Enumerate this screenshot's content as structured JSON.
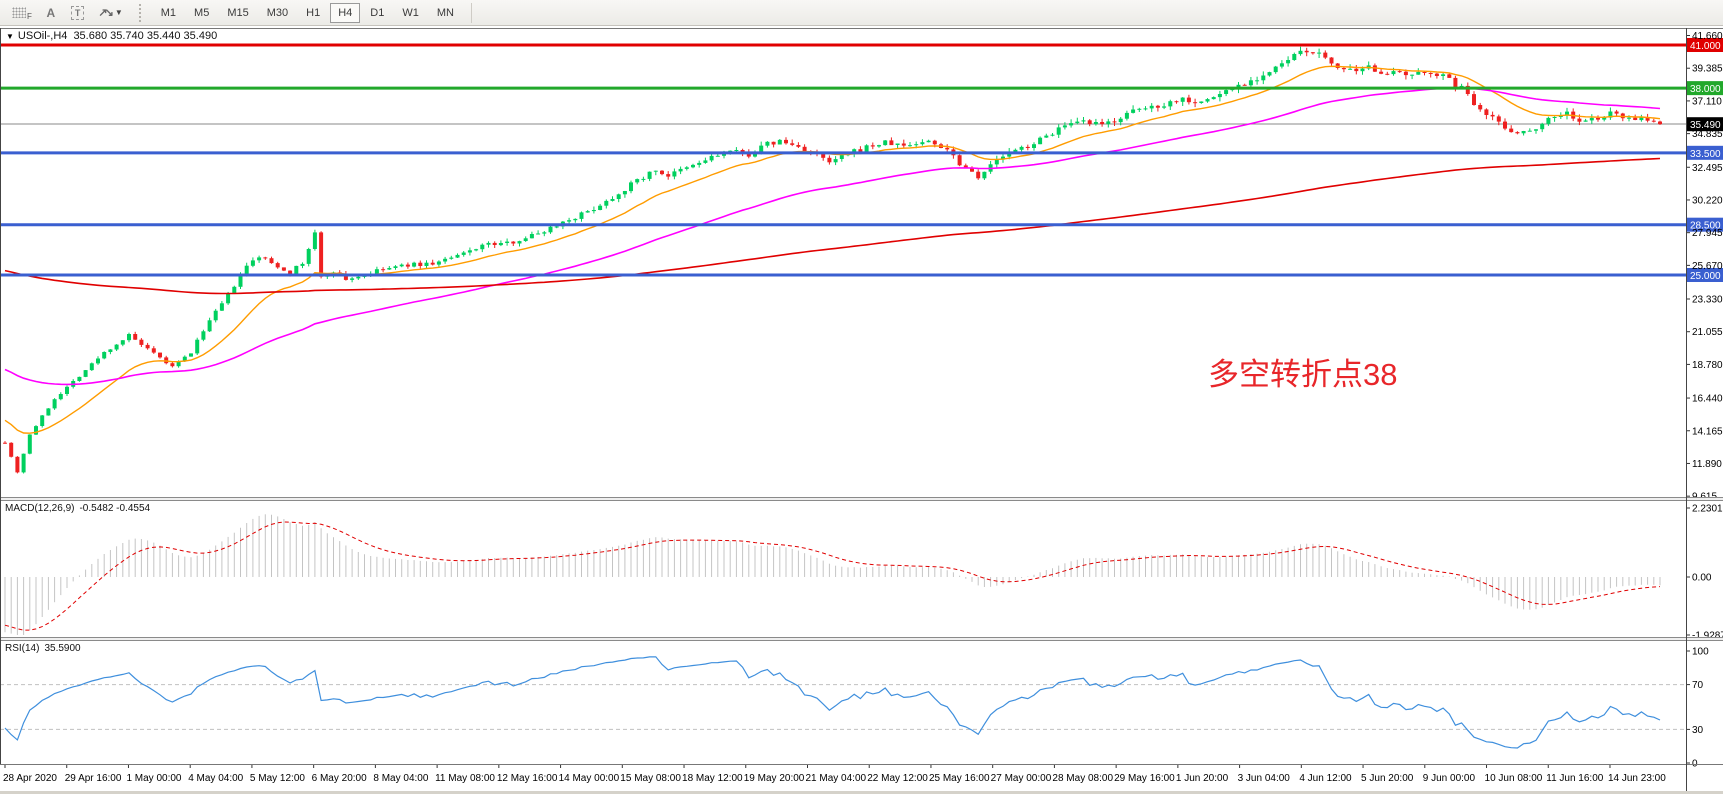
{
  "toolbar": {
    "icons": [
      {
        "name": "grid-template-icon",
        "label": "F"
      },
      {
        "name": "text-label-icon",
        "label": "A"
      },
      {
        "name": "text-box-icon",
        "label": "T"
      },
      {
        "name": "arrows-objects-icon",
        "label": ""
      }
    ],
    "timeframes": [
      "M1",
      "M5",
      "M15",
      "M30",
      "H1",
      "H4",
      "D1",
      "W1",
      "MN"
    ],
    "active_timeframe": "H4"
  },
  "chart": {
    "title": "USOil-,H4",
    "ohlc": "35.680 35.740 35.440 35.490",
    "annotation": "多空转折点38",
    "annotation_color": "#e8262a"
  },
  "chart_data": [
    {
      "type": "candlestick",
      "symbol": "USOil-",
      "timeframe": "H4",
      "ohlc_display": {
        "open": "35.680",
        "high": "35.740",
        "low": "35.440",
        "close": "35.490"
      },
      "colors": {
        "bull": "#00d05e",
        "bear": "#ee2020"
      },
      "y_axis_ticks": [
        41.66,
        39.385,
        37.11,
        34.835,
        32.495,
        30.22,
        27.945,
        25.67,
        23.33,
        21.055,
        18.78,
        16.44,
        14.165,
        11.89,
        9.615
      ],
      "x_axis_labels": [
        "28 Apr 2020",
        "29 Apr 16:00",
        "1 May 00:00",
        "4 May 04:00",
        "5 May 12:00",
        "6 May 20:00",
        "8 May 04:00",
        "11 May 08:00",
        "12 May 16:00",
        "14 May 00:00",
        "15 May 08:00",
        "18 May 12:00",
        "19 May 20:00",
        "21 May 04:00",
        "22 May 12:00",
        "25 May 16:00",
        "27 May 00:00",
        "28 May 08:00",
        "29 May 16:00",
        "1 Jun 20:00",
        "3 Jun 04:00",
        "4 Jun 12:00",
        "5 Jun 20:00",
        "9 Jun 00:00",
        "10 Jun 08:00",
        "11 Jun 16:00",
        "14 Jun 23:00"
      ],
      "hlines": [
        {
          "price": 41.0,
          "label": "41.000",
          "color": "#e00000"
        },
        {
          "price": 38.0,
          "label": "38.000",
          "color": "#22a82b"
        },
        {
          "price": 33.5,
          "label": "33.500",
          "color": "#3a5fd0"
        },
        {
          "price": 28.5,
          "label": "28.500",
          "color": "#3a5fd0"
        },
        {
          "price": 25.0,
          "label": "25.000",
          "color": "#3a5fd0"
        }
      ],
      "current_price": {
        "value": 35.49,
        "label": "35.490",
        "line_color": "#8a8a8a",
        "badge_bg": "#000000"
      },
      "moving_averages": [
        {
          "name": "fast-ma",
          "color": "#ff9c00",
          "period": 16,
          "seed": 15.1,
          "width": 1.4
        },
        {
          "name": "medium-ma",
          "color": "#ff00ff",
          "period": 60,
          "seed": 18.6,
          "width": 1.6
        },
        {
          "name": "slow-ma",
          "color": "#e00000",
          "period": 260,
          "seed": 25.4,
          "width": 1.6
        }
      ],
      "price_path": [
        [
          0,
          13.4
        ],
        [
          2,
          11.3
        ],
        [
          4,
          13.9
        ],
        [
          8,
          16.4
        ],
        [
          12,
          18.0
        ],
        [
          16,
          19.6
        ],
        [
          20,
          20.8
        ],
        [
          23,
          19.8
        ],
        [
          27,
          18.6
        ],
        [
          30,
          19.6
        ],
        [
          32,
          21.2
        ],
        [
          36,
          23.6
        ],
        [
          39,
          25.6
        ],
        [
          41,
          26.3
        ],
        [
          44,
          25.6
        ],
        [
          46,
          25.2
        ],
        [
          48,
          25.8
        ],
        [
          50,
          27.9
        ],
        [
          51,
          24.8
        ],
        [
          53,
          25.3
        ],
        [
          55,
          24.7
        ],
        [
          58,
          25.0
        ],
        [
          61,
          25.4
        ],
        [
          65,
          25.7
        ],
        [
          69,
          25.8
        ],
        [
          73,
          26.3
        ],
        [
          77,
          27.1
        ],
        [
          81,
          27.2
        ],
        [
          86,
          27.9
        ],
        [
          90,
          28.7
        ],
        [
          94,
          29.4
        ],
        [
          98,
          30.4
        ],
        [
          102,
          31.6
        ],
        [
          105,
          32.3
        ],
        [
          107,
          31.9
        ],
        [
          111,
          32.6
        ],
        [
          114,
          33.2
        ],
        [
          117,
          33.6
        ],
        [
          120,
          33.4
        ],
        [
          123,
          34.1
        ],
        [
          125,
          34.3
        ],
        [
          128,
          33.9
        ],
        [
          131,
          33.3
        ],
        [
          133,
          32.8
        ],
        [
          136,
          33.4
        ],
        [
          139,
          33.9
        ],
        [
          142,
          34.2
        ],
        [
          145,
          34.0
        ],
        [
          149,
          34.3
        ],
        [
          152,
          33.8
        ],
        [
          154,
          32.8
        ],
        [
          157,
          31.9
        ],
        [
          159,
          32.6
        ],
        [
          161,
          33.3
        ],
        [
          164,
          33.8
        ],
        [
          167,
          34.4
        ],
        [
          170,
          35.2
        ],
        [
          174,
          35.6
        ],
        [
          177,
          35.4
        ],
        [
          180,
          36.0
        ],
        [
          183,
          36.5
        ],
        [
          187,
          36.9
        ],
        [
          190,
          37.3
        ],
        [
          193,
          37.0
        ],
        [
          196,
          37.6
        ],
        [
          199,
          38.2
        ],
        [
          203,
          38.9
        ],
        [
          206,
          39.6
        ],
        [
          208,
          40.3
        ],
        [
          211,
          40.6
        ],
        [
          213,
          40.0
        ],
        [
          216,
          39.3
        ],
        [
          218,
          39.0
        ],
        [
          220,
          39.4
        ],
        [
          224,
          39.0
        ],
        [
          227,
          38.8
        ],
        [
          230,
          39.2
        ],
        [
          232,
          38.8
        ],
        [
          235,
          38.0
        ],
        [
          237,
          37.0
        ],
        [
          240,
          36.0
        ],
        [
          242,
          35.2
        ],
        [
          245,
          34.9
        ],
        [
          247,
          35.3
        ],
        [
          249,
          35.9
        ],
        [
          252,
          36.3
        ],
        [
          254,
          35.6
        ],
        [
          257,
          35.9
        ],
        [
          259,
          36.2
        ],
        [
          262,
          36.0
        ],
        [
          264,
          35.8
        ],
        [
          266,
          35.6
        ],
        [
          267,
          35.5
        ]
      ],
      "bar_count": 268,
      "annotation": {
        "text": "多空转折点38",
        "color": "#e8262a"
      }
    },
    {
      "type": "macd-histogram",
      "label": "MACD(12,26,9)",
      "values_display": "-0.5482 -0.4554",
      "params": {
        "fast": 12,
        "slow": 26,
        "signal": 9
      },
      "axis_ticks": [
        {
          "v": 2.2301,
          "label": "2.2301"
        },
        {
          "v": 0,
          "label": "0.00"
        },
        {
          "v": -1.9287,
          "label": "-1.9287"
        }
      ],
      "histogram_color": "#c4c4c4",
      "signal_color": "#e00000",
      "seeds": {
        "ema_fast": 14.8,
        "ema_slow": 16.6,
        "signal": -1.5
      }
    },
    {
      "type": "line",
      "label": "RSI(14)",
      "value_display": "35.5900",
      "period": 14,
      "axis_ticks": [
        {
          "v": 100,
          "label": "100"
        },
        {
          "v": 70,
          "label": "70"
        },
        {
          "v": 30,
          "label": "30"
        },
        {
          "v": 0,
          "label": "0"
        }
      ],
      "levels": [
        70,
        30
      ],
      "line_color": "#3f8fdd",
      "level_color": "#c0c0c0",
      "seeds": {
        "avg_gain": 0.1,
        "avg_loss": 0.22
      }
    }
  ]
}
